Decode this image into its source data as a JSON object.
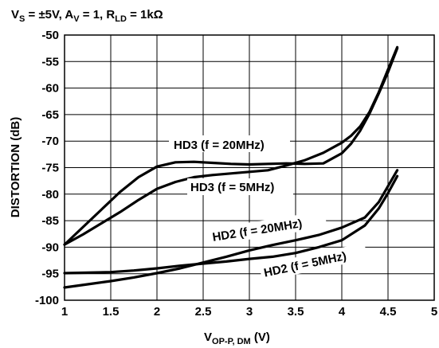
{
  "chart_data": {
    "type": "line",
    "title_parts": {
      "vs": "V",
      "vs_sub": "S",
      "vs_val": " = ±5V, A",
      "av_sub": "V",
      "av_val": " = 1, R",
      "rld_sub": "LD",
      "rld_val": " = 1kΩ"
    },
    "xlabel": {
      "main": "V",
      "sub": "OP-P, DM",
      "unit": " (V)"
    },
    "ylabel": "DISTORTION (dB)",
    "xlim": [
      1,
      5
    ],
    "ylim": [
      -100,
      -50
    ],
    "xticks": [
      1,
      1.5,
      2,
      2.5,
      3,
      3.5,
      4,
      4.5,
      5
    ],
    "xtick_labels": [
      "1",
      "1.5",
      "2",
      "2.5",
      "3",
      "3.5",
      "4",
      "4.5",
      "5"
    ],
    "yticks": [
      -50,
      -55,
      -60,
      -65,
      -70,
      -75,
      -80,
      -85,
      -90,
      -95,
      -100
    ],
    "ytick_labels": [
      "-50",
      "-55",
      "-60",
      "-65",
      "-70",
      "-75",
      "-80",
      "-85",
      "-90",
      "-95",
      "-100"
    ],
    "grid": true,
    "series": [
      {
        "name": "HD3 (f = 20MHz)",
        "x": [
          1.0,
          1.2,
          1.4,
          1.6,
          1.8,
          2.0,
          2.2,
          2.4,
          2.6,
          2.8,
          3.0,
          3.2,
          3.4,
          3.6,
          3.8,
          4.0,
          4.1,
          4.2,
          4.3,
          4.4,
          4.5,
          4.6
        ],
        "y": [
          -89.5,
          -86.2,
          -82.9,
          -79.6,
          -76.8,
          -74.8,
          -74.0,
          -73.9,
          -74.1,
          -74.3,
          -74.4,
          -74.3,
          -74.2,
          -74.3,
          -74.2,
          -72.3,
          -70.5,
          -68.0,
          -64.8,
          -61.0,
          -57.0,
          -52.5
        ]
      },
      {
        "name": "HD3 (f = 5MHz)",
        "x": [
          1.0,
          1.2,
          1.4,
          1.6,
          1.8,
          2.0,
          2.2,
          2.4,
          2.6,
          2.8,
          3.0,
          3.2,
          3.4,
          3.6,
          3.8,
          4.0,
          4.1,
          4.2,
          4.3,
          4.4,
          4.5,
          4.6
        ],
        "y": [
          -89.5,
          -87.6,
          -85.5,
          -83.4,
          -81.1,
          -79.0,
          -77.7,
          -76.8,
          -76.4,
          -76.1,
          -75.8,
          -75.5,
          -74.6,
          -73.6,
          -72.2,
          -70.3,
          -69.0,
          -67.2,
          -64.5,
          -60.8,
          -56.5,
          -52.3
        ]
      },
      {
        "name": "HD2 (f = 20MHz)",
        "x": [
          1.0,
          1.25,
          1.5,
          1.75,
          2.0,
          2.25,
          2.5,
          2.75,
          3.0,
          3.25,
          3.5,
          3.75,
          4.0,
          4.25,
          4.4,
          4.5,
          4.6
        ],
        "y": [
          -97.6,
          -97.0,
          -96.4,
          -95.7,
          -94.9,
          -94.0,
          -92.9,
          -91.8,
          -90.6,
          -89.6,
          -88.7,
          -87.7,
          -86.3,
          -84.4,
          -81.5,
          -78.5,
          -75.5
        ]
      },
      {
        "name": "HD2 (f = 5MHz)",
        "x": [
          1.0,
          1.25,
          1.5,
          1.75,
          2.0,
          2.25,
          2.5,
          2.75,
          3.0,
          3.25,
          3.5,
          3.75,
          4.0,
          4.25,
          4.4,
          4.5,
          4.6
        ],
        "y": [
          -94.9,
          -94.8,
          -94.7,
          -94.4,
          -94.0,
          -93.5,
          -93.1,
          -92.7,
          -92.2,
          -91.8,
          -91.1,
          -90.0,
          -88.7,
          -85.9,
          -82.7,
          -79.8,
          -76.6
        ]
      }
    ]
  }
}
